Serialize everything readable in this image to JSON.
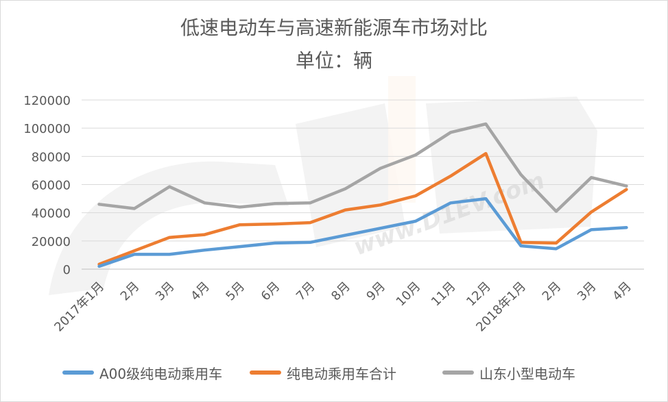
{
  "chart_data": {
    "type": "line",
    "title": "低速电动车与高速新能源车市场对比",
    "subtitle": "单位：辆",
    "categories": [
      "2017年1月",
      "2月",
      "3月",
      "4月",
      "5月",
      "6月",
      "7月",
      "8月",
      "9月",
      "10月",
      "11月",
      "12月",
      "2018年1月",
      "2月",
      "3月",
      "4月"
    ],
    "ylim": [
      0,
      120000
    ],
    "yticks": [
      0,
      20000,
      40000,
      60000,
      80000,
      100000,
      120000
    ],
    "grid": true,
    "legend_position": "bottom",
    "series": [
      {
        "name": "A00级纯电动乘用车",
        "color": "#5b9bd5",
        "values": [
          2000,
          10500,
          10500,
          13500,
          16000,
          18500,
          19000,
          24000,
          29000,
          34000,
          47000,
          50000,
          16500,
          14500,
          28000,
          29500
        ]
      },
      {
        "name": "纯电动乘用车合计",
        "color": "#ed7d31",
        "values": [
          3500,
          13000,
          22500,
          24500,
          31500,
          32000,
          33000,
          42000,
          45500,
          52000,
          66000,
          82000,
          19000,
          18500,
          40500,
          56500
        ]
      },
      {
        "name": "山东小型电动车",
        "color": "#a5a5a5",
        "values": [
          46000,
          43000,
          58500,
          47000,
          44000,
          46500,
          47000,
          57000,
          71500,
          81000,
          97000,
          103000,
          67000,
          41000,
          65000,
          59000
        ]
      }
    ],
    "watermark": "www.D1EV.com"
  }
}
